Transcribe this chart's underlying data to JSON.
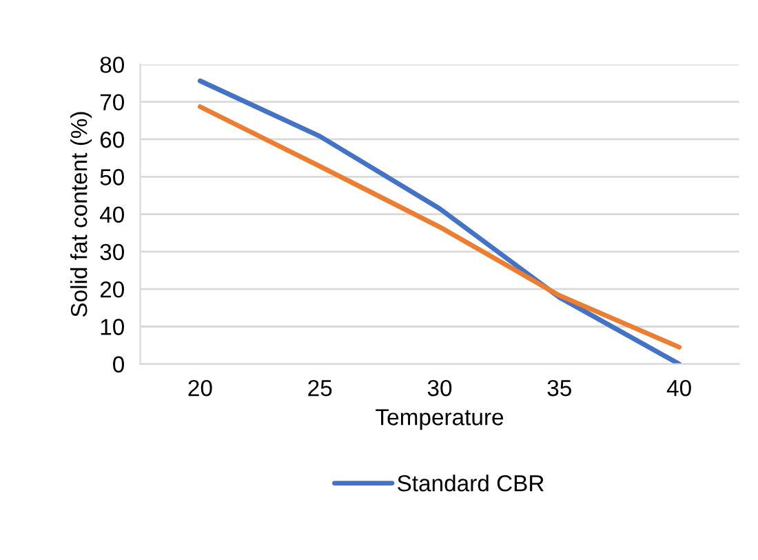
{
  "chart_data": {
    "type": "line",
    "xlabel": "Temperature",
    "ylabel": "Solid fat content (%)",
    "categories": [
      "20",
      "25",
      "30",
      "35",
      "40"
    ],
    "series": [
      {
        "name": "Standard CBR",
        "color": "#4472c4",
        "values": [
          75.6,
          60.8,
          41.5,
          17.8,
          0
        ]
      },
      {
        "color": "#ed7d31",
        "values": [
          68.7,
          52.8,
          36.6,
          18.3,
          4.5
        ]
      }
    ],
    "ylim": [
      0,
      80
    ],
    "yticks": [
      0,
      10,
      20,
      30,
      40,
      50,
      60,
      70,
      80
    ],
    "grid": "y",
    "legend": "bottom",
    "marker": "none",
    "line_style": "solid"
  }
}
